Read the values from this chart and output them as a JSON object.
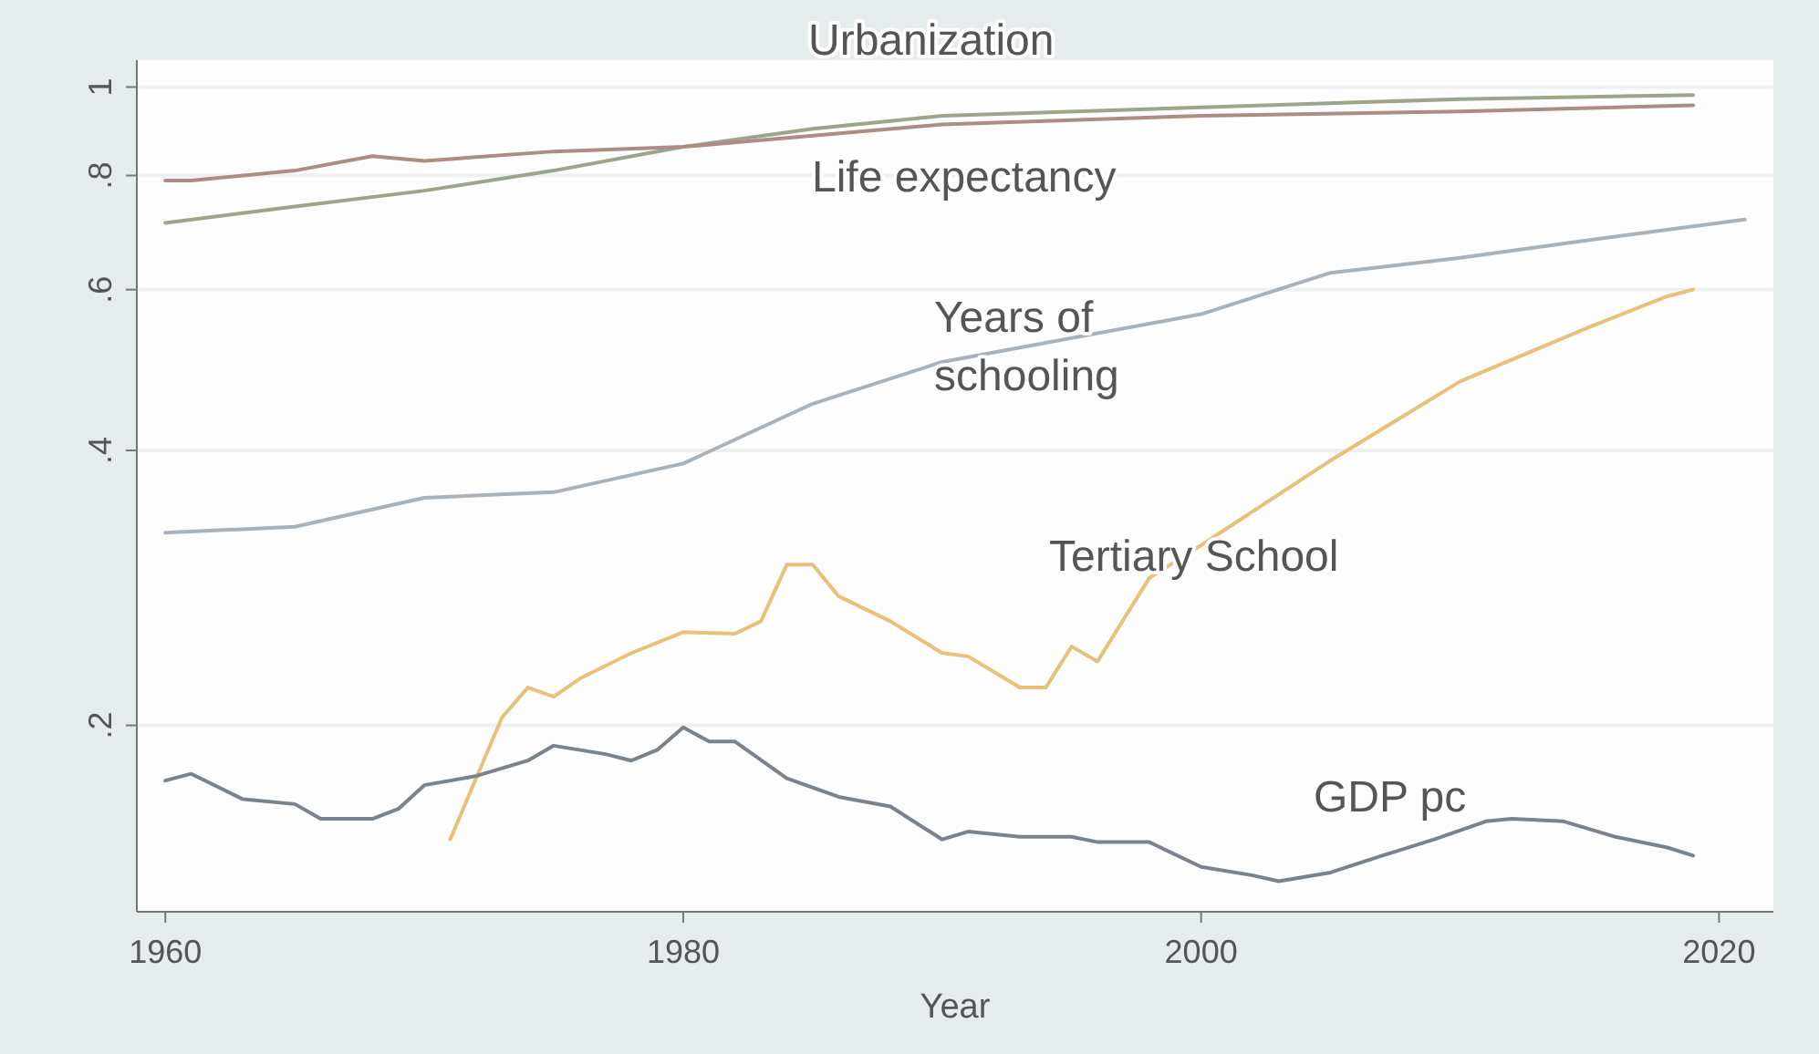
{
  "chart_data": {
    "type": "line",
    "xlabel": "Year",
    "log": "y",
    "grid": "y",
    "line_style": "solid",
    "xlim": [
      1958.9,
      2022.1
    ],
    "ylim": [
      0.125,
      1.07
    ],
    "xticks": [
      1960,
      1980,
      2000,
      2020
    ],
    "yticks": [
      {
        "value": 0.2,
        "label": ".2"
      },
      {
        "value": 0.4,
        "label": ".4"
      },
      {
        "value": 0.6,
        "label": ".6"
      },
      {
        "value": 0.8,
        "label": ".8"
      },
      1
    ],
    "series": [
      {
        "name": "Urbanization",
        "color": "#9aa58c",
        "x": [
          1960,
          1965,
          1970,
          1975,
          1980,
          1985,
          1990,
          2000,
          2010,
          2019
        ],
        "values": [
          0.71,
          0.74,
          0.77,
          0.81,
          0.86,
          0.9,
          0.93,
          0.95,
          0.97,
          0.98
        ]
      },
      {
        "name": "Life expectancy",
        "color": "#b08a84",
        "x": [
          1960,
          1961,
          1965,
          1968,
          1970,
          1975,
          1980,
          1990,
          2000,
          2010,
          2019
        ],
        "values": [
          0.79,
          0.79,
          0.81,
          0.84,
          0.83,
          0.85,
          0.86,
          0.91,
          0.93,
          0.94,
          0.955
        ]
      },
      {
        "name": "Years of schooling",
        "color": "#a9b1b9",
        "x": [
          1960,
          1965,
          1970,
          1975,
          1980,
          1985,
          1990,
          2000,
          2005,
          2010,
          2015,
          2021
        ],
        "values": [
          0.325,
          0.33,
          0.355,
          0.36,
          0.387,
          0.45,
          0.5,
          0.564,
          0.626,
          0.65,
          0.68,
          0.716
        ]
      },
      {
        "name": "Tertiary School",
        "color": "#e8c07a",
        "x": [
          1971,
          1973,
          1974,
          1975,
          1976,
          1978,
          1980,
          1982,
          1983,
          1984,
          1985,
          1986,
          1988,
          1990,
          1991,
          1993,
          1994,
          1995,
          1996,
          1998,
          2000,
          2005,
          2010,
          2015,
          2018,
          2019
        ],
        "values": [
          0.15,
          0.204,
          0.22,
          0.215,
          0.225,
          0.24,
          0.253,
          0.252,
          0.26,
          0.3,
          0.3,
          0.277,
          0.26,
          0.24,
          0.238,
          0.22,
          0.22,
          0.244,
          0.235,
          0.29,
          0.315,
          0.39,
          0.476,
          0.546,
          0.59,
          0.6
        ]
      },
      {
        "name": "GDP pc",
        "color": "#7a828c",
        "x": [
          1960,
          1961,
          1963,
          1965,
          1966,
          1968,
          1969,
          1970,
          1972,
          1974,
          1975,
          1977,
          1978,
          1979,
          1980,
          1981,
          1982,
          1984,
          1986,
          1988,
          1990,
          1991,
          1993,
          1995,
          1996,
          1998,
          2000,
          2002,
          2003,
          2005,
          2007,
          2009,
          2011,
          2012,
          2014,
          2016,
          2018,
          2019
        ],
        "values": [
          0.174,
          0.177,
          0.166,
          0.164,
          0.158,
          0.158,
          0.162,
          0.172,
          0.176,
          0.183,
          0.19,
          0.186,
          0.183,
          0.188,
          0.199,
          0.192,
          0.192,
          0.175,
          0.167,
          0.163,
          0.15,
          0.153,
          0.151,
          0.151,
          0.149,
          0.149,
          0.14,
          0.137,
          0.135,
          0.138,
          0.144,
          0.15,
          0.157,
          0.158,
          0.157,
          0.151,
          0.147,
          0.144
        ]
      }
    ]
  }
}
